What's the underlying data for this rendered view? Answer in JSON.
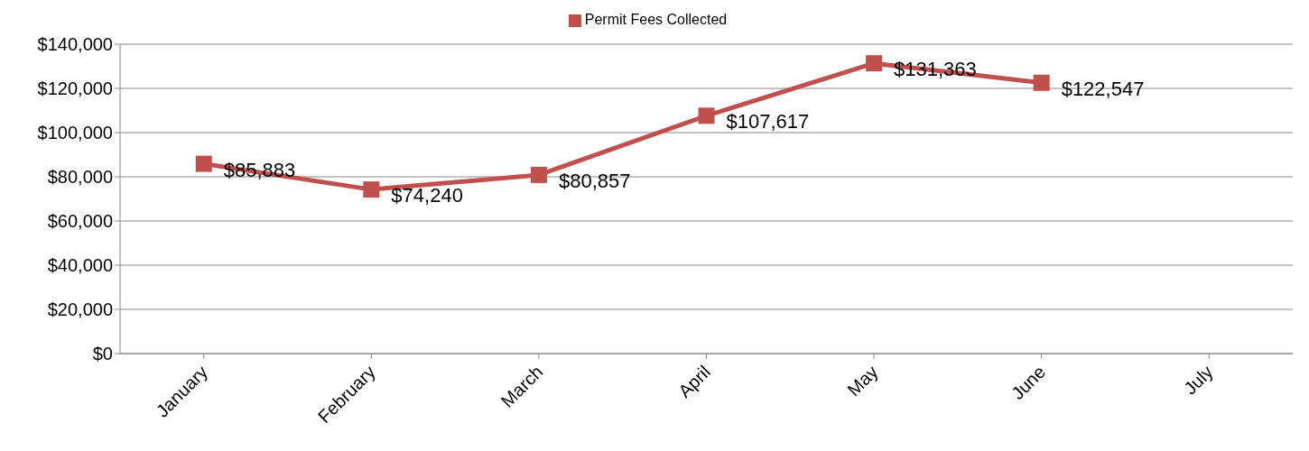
{
  "chart_data": {
    "type": "line",
    "categories": [
      "January",
      "February",
      "March",
      "April",
      "May",
      "June",
      "July"
    ],
    "series": [
      {
        "name": "Permit Fees Collected",
        "color": "#c0504d",
        "values": [
          85883,
          74240,
          80857,
          107617,
          131363,
          122547,
          null
        ],
        "value_labels": [
          "$85,883",
          "$74,240",
          "$80,857",
          "$107,617",
          "$131,363",
          "$122,547",
          null
        ]
      }
    ],
    "ylim": [
      0,
      140000
    ],
    "yticks": [
      {
        "value": 0,
        "label": "$0"
      },
      {
        "value": 20000,
        "label": "$20,000"
      },
      {
        "value": 40000,
        "label": "$40,000"
      },
      {
        "value": 60000,
        "label": "$60,000"
      },
      {
        "value": 80000,
        "label": "$80,000"
      },
      {
        "value": 100000,
        "label": "$100,000"
      },
      {
        "value": 120000,
        "label": "$120,000"
      },
      {
        "value": 140000,
        "label": "$140,000"
      }
    ],
    "grid": "y",
    "legend": "top",
    "marker": "square",
    "line_style": "solid"
  }
}
